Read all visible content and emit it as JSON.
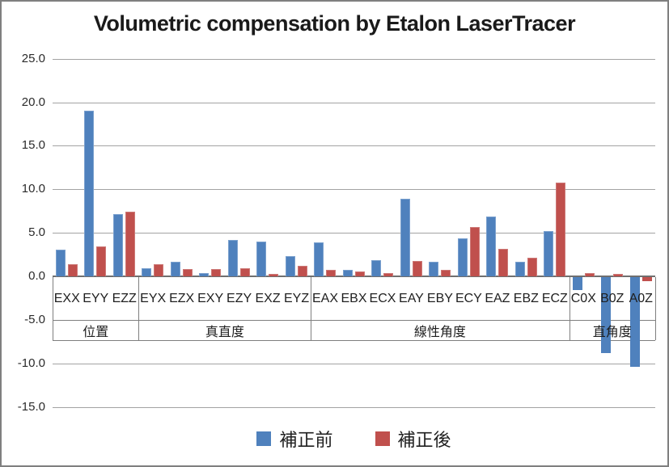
{
  "title": "Volumetric compensation by Etalon LaserTracer",
  "colors": {
    "series_before": "#4F81BD",
    "series_after": "#C0504D",
    "gridline": "#A3A3A3",
    "axis": "#6F6F6F",
    "text": "#1F1F1F"
  },
  "chart_data": {
    "type": "bar",
    "title": "Volumetric compensation by Etalon LaserTracer",
    "categories": [
      "EXX",
      "EYY",
      "EZZ",
      "EYX",
      "EZX",
      "EXY",
      "EZY",
      "EXZ",
      "EYZ",
      "EAX",
      "EBX",
      "ECX",
      "EAY",
      "EBY",
      "ECY",
      "EAZ",
      "EBZ",
      "ECZ",
      "C0X",
      "B0Z",
      "A0Z"
    ],
    "groups": [
      {
        "label": "位置",
        "count": 3
      },
      {
        "label": "真直度",
        "count": 6
      },
      {
        "label": "線性角度",
        "count": 9
      },
      {
        "label": "直角度",
        "count": 3
      }
    ],
    "series": [
      {
        "name": "補正前",
        "color": "#4F81BD",
        "values": [
          3.1,
          19.0,
          7.1,
          0.9,
          1.7,
          0.4,
          4.2,
          4.0,
          2.3,
          3.9,
          0.7,
          1.9,
          8.9,
          1.7,
          4.4,
          6.9,
          1.7,
          5.2,
          -1.5,
          -8.7,
          -10.3
        ]
      },
      {
        "name": "補正後",
        "color": "#C0504D",
        "values": [
          1.4,
          3.4,
          7.4,
          1.4,
          0.8,
          0.8,
          0.9,
          0.3,
          1.2,
          0.7,
          0.6,
          0.4,
          1.8,
          0.7,
          5.7,
          3.2,
          2.1,
          10.8,
          0.4,
          0.3,
          -0.5
        ]
      }
    ],
    "ylim": [
      -15,
      25
    ],
    "yticks": [
      25,
      20,
      15,
      10,
      5,
      0,
      -5,
      -10,
      -15
    ],
    "ytick_labels": [
      "25.0",
      "20.0",
      "15.0",
      "10.0",
      "5.0",
      "0.0",
      "-5.0",
      "-10.0",
      "-15.0"
    ],
    "grid": true,
    "legend_position": "bottom",
    "xlabel": "",
    "ylabel": ""
  }
}
